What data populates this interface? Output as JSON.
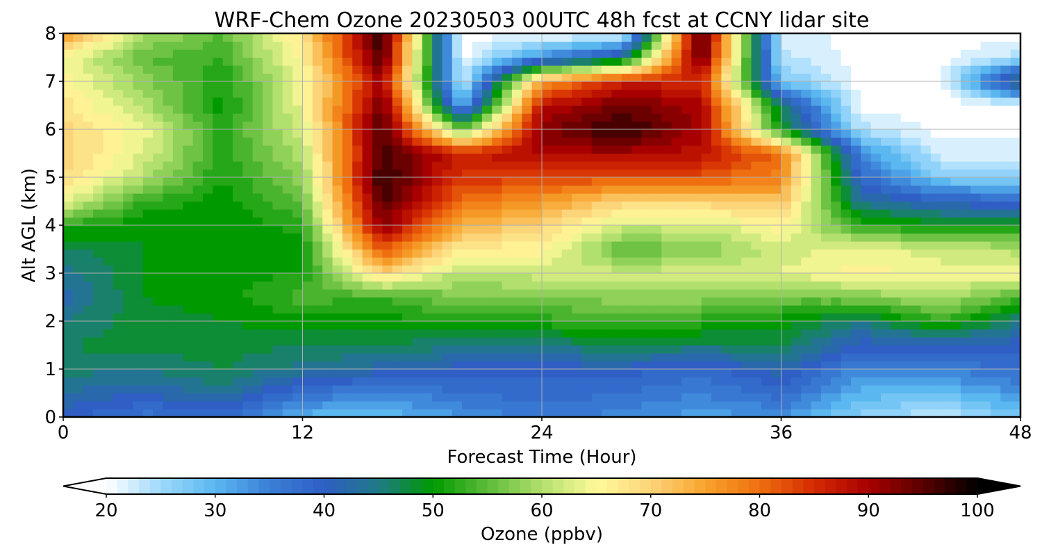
{
  "chart_data": {
    "type": "heatmap",
    "title": "WRF-Chem Ozone  20230503 00UTC 48h fcst at CCNY lidar site",
    "xlabel": "Forecast Time (Hour)",
    "ylabel": "Alt AGL (km)",
    "xlim": [
      0,
      48
    ],
    "ylim": [
      0,
      8
    ],
    "x_ticks": [
      "0",
      "12",
      "24",
      "36",
      "48"
    ],
    "y_ticks": [
      "0",
      "1",
      "2",
      "3",
      "4",
      "5",
      "6",
      "7",
      "8"
    ],
    "grid": true,
    "colorbar": {
      "label": "Ozone  (ppbv)",
      "range": [
        20,
        100
      ],
      "ticks": [
        "20",
        "30",
        "40",
        "50",
        "60",
        "70",
        "80",
        "90",
        "100"
      ],
      "extend": "both",
      "colors": [
        "#ffffff",
        "#9ed9fb",
        "#5ab7f0",
        "#3a7fd6",
        "#2f5ec4",
        "#1f7a86",
        "#009a00",
        "#5dbb3a",
        "#b2e06c",
        "#fffa9a",
        "#fcd47a",
        "#f7a32c",
        "#ef6f10",
        "#d42a02",
        "#a80000",
        "#5a0000",
        "#000000"
      ]
    },
    "x": [
      0,
      4,
      8,
      12,
      16,
      20,
      24,
      28,
      32,
      36,
      40,
      44,
      48
    ],
    "y": [
      0,
      0.5,
      1,
      1.5,
      2,
      2.5,
      3,
      3.5,
      4,
      4.5,
      5,
      5.5,
      6,
      6.5,
      7,
      7.5,
      8
    ],
    "z": [
      [
        40,
        36,
        38,
        30,
        29,
        33,
        36,
        34,
        32,
        33,
        26,
        23,
        28
      ],
      [
        43,
        41,
        44,
        37,
        34,
        37,
        38,
        37,
        35,
        38,
        30,
        29,
        33
      ],
      [
        46,
        45,
        47,
        44,
        42,
        40,
        40,
        40,
        38,
        42,
        34,
        35,
        38
      ],
      [
        47,
        48,
        48,
        47,
        47,
        45,
        45,
        47,
        46,
        47,
        40,
        40,
        40
      ],
      [
        45,
        48,
        49,
        50,
        50,
        52,
        52,
        54,
        52,
        50,
        45,
        53,
        45
      ],
      [
        42,
        49,
        50,
        54,
        53,
        57,
        57,
        58,
        58,
        56,
        57,
        60,
        54
      ],
      [
        44,
        49,
        50,
        51,
        70,
        60,
        62,
        62,
        62,
        63,
        66,
        64,
        65
      ],
      [
        46,
        49,
        49,
        50,
        82,
        66,
        66,
        55,
        57,
        62,
        64,
        62,
        60
      ],
      [
        52,
        49,
        49,
        52,
        92,
        74,
        70,
        62,
        62,
        66,
        52,
        50,
        50
      ],
      [
        64,
        53,
        50,
        55,
        96,
        80,
        76,
        70,
        70,
        72,
        44,
        40,
        38
      ],
      [
        69,
        60,
        51,
        58,
        98,
        84,
        84,
        82,
        82,
        78,
        38,
        27,
        26
      ],
      [
        70,
        63,
        52,
        60,
        96,
        86,
        90,
        90,
        88,
        80,
        34,
        22,
        22
      ],
      [
        70,
        64,
        52,
        62,
        96,
        55,
        92,
        98,
        90,
        50,
        24,
        20,
        20
      ],
      [
        68,
        60,
        50,
        64,
        94,
        30,
        88,
        94,
        90,
        46,
        20,
        20,
        20
      ],
      [
        66,
        58,
        51,
        64,
        90,
        22,
        76,
        86,
        86,
        28,
        20,
        20,
        48
      ],
      [
        65,
        55,
        53,
        66,
        96,
        20,
        34,
        44,
        95,
        24,
        20,
        20,
        24
      ],
      [
        76,
        60,
        55,
        68,
        98,
        20,
        20,
        20,
        98,
        22,
        20,
        20,
        20
      ]
    ]
  }
}
